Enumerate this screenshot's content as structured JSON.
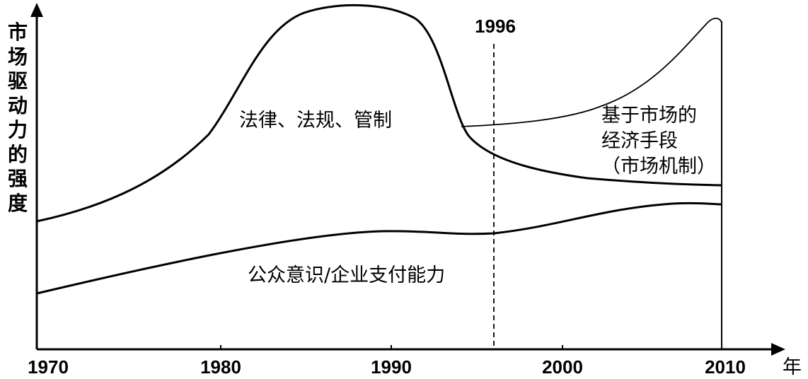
{
  "chart_data": {
    "type": "line",
    "ylabel": "市场驱动力的强度",
    "xunit": "年",
    "x_ticks": [
      "1970",
      "1980",
      "1990",
      "2000",
      "2010"
    ],
    "marker": {
      "label": "1996",
      "x": 1996,
      "style": "dashed"
    },
    "series_labels": {
      "regulation": "法律、法规、管制",
      "market": [
        "基于市场的",
        "经济手段",
        "（市场机制）"
      ],
      "public": "公众意识/企业支付能力"
    }
  }
}
